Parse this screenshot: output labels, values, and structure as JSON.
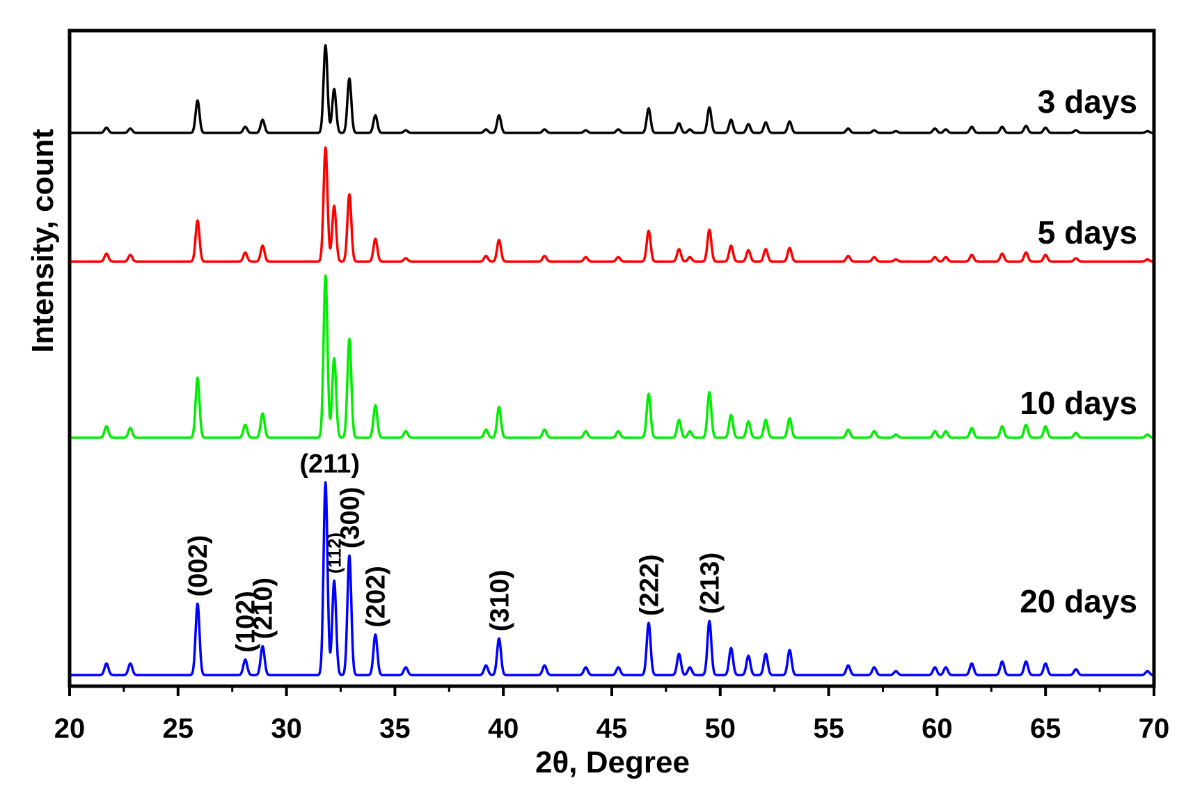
{
  "chart_data": {
    "type": "line",
    "xlabel": "2θ, Degree",
    "ylabel": "Intensity, count",
    "xlim": [
      20,
      70
    ],
    "xticks": [
      20,
      25,
      30,
      35,
      40,
      45,
      50,
      55,
      60,
      65,
      70
    ],
    "y_tick_labels_shown": false,
    "grid": false,
    "peak_positions": [
      21.7,
      22.8,
      25.9,
      28.1,
      28.9,
      31.8,
      32.2,
      32.9,
      34.1,
      35.5,
      39.2,
      39.8,
      41.9,
      43.8,
      45.3,
      46.7,
      48.1,
      48.6,
      49.5,
      50.5,
      51.3,
      52.1,
      53.2,
      55.9,
      57.1,
      58.1,
      59.9,
      60.4,
      61.6,
      63.0,
      64.1,
      65.0,
      66.4,
      69.7
    ],
    "series": [
      {
        "name": "3 days",
        "color": "#000000",
        "relative_peak_heights": [
          0.06,
          0.05,
          0.37,
          0.07,
          0.15,
          1.0,
          0.5,
          0.62,
          0.2,
          0.03,
          0.04,
          0.2,
          0.04,
          0.03,
          0.04,
          0.28,
          0.11,
          0.04,
          0.29,
          0.15,
          0.1,
          0.12,
          0.13,
          0.05,
          0.03,
          0.02,
          0.05,
          0.04,
          0.07,
          0.07,
          0.08,
          0.06,
          0.03,
          0.02
        ]
      },
      {
        "name": "5 days",
        "color": "#ff0000",
        "relative_peak_heights": [
          0.07,
          0.06,
          0.36,
          0.08,
          0.14,
          1.0,
          0.49,
          0.59,
          0.2,
          0.03,
          0.05,
          0.19,
          0.05,
          0.04,
          0.04,
          0.27,
          0.11,
          0.04,
          0.28,
          0.14,
          0.1,
          0.11,
          0.12,
          0.05,
          0.04,
          0.02,
          0.04,
          0.04,
          0.06,
          0.07,
          0.08,
          0.06,
          0.03,
          0.02
        ]
      },
      {
        "name": "10 days",
        "color": "#00ee00",
        "relative_peak_heights": [
          0.07,
          0.06,
          0.37,
          0.08,
          0.15,
          1.0,
          0.49,
          0.61,
          0.2,
          0.04,
          0.05,
          0.19,
          0.05,
          0.04,
          0.04,
          0.27,
          0.11,
          0.04,
          0.28,
          0.14,
          0.1,
          0.11,
          0.12,
          0.05,
          0.04,
          0.02,
          0.04,
          0.04,
          0.06,
          0.07,
          0.08,
          0.07,
          0.03,
          0.02
        ]
      },
      {
        "name": "20 days",
        "color": "#0000ff",
        "relative_peak_heights": [
          0.06,
          0.06,
          0.37,
          0.08,
          0.15,
          1.0,
          0.49,
          0.62,
          0.21,
          0.04,
          0.05,
          0.19,
          0.05,
          0.04,
          0.04,
          0.27,
          0.11,
          0.04,
          0.28,
          0.14,
          0.1,
          0.11,
          0.13,
          0.05,
          0.04,
          0.02,
          0.04,
          0.04,
          0.06,
          0.07,
          0.07,
          0.06,
          0.03,
          0.02
        ]
      }
    ],
    "annotations": [
      {
        "text": "(002)",
        "x": 25.9,
        "orientation": "vertical"
      },
      {
        "text": "(102)",
        "x": 28.1,
        "orientation": "vertical"
      },
      {
        "text": "(210)",
        "x": 28.9,
        "orientation": "vertical"
      },
      {
        "text": "(211)",
        "x": 31.8,
        "orientation": "horizontal"
      },
      {
        "text": "(112)",
        "x": 32.2,
        "orientation": "vertical",
        "size": "small"
      },
      {
        "text": "(300)",
        "x": 32.9,
        "orientation": "vertical"
      },
      {
        "text": "(202)",
        "x": 34.1,
        "orientation": "vertical"
      },
      {
        "text": "(310)",
        "x": 39.8,
        "orientation": "vertical"
      },
      {
        "text": "(222)",
        "x": 46.7,
        "orientation": "vertical"
      },
      {
        "text": "(213)",
        "x": 49.5,
        "orientation": "vertical"
      }
    ]
  }
}
